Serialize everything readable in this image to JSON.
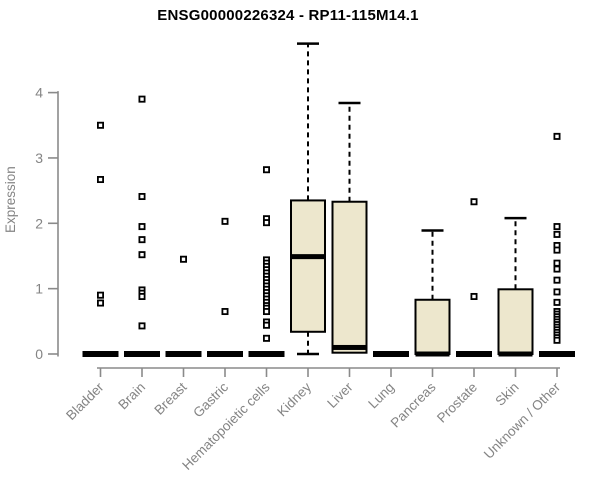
{
  "figure": {
    "title": "ENSG00000226324 - RP11-115M14.1"
  },
  "chart_data": {
    "type": "boxplot",
    "title": "ENSG00000226324 - RP11-115M14.1",
    "xlabel": "",
    "ylabel": "Expression",
    "ylim": [
      0,
      4.9
    ],
    "y_ticks": [
      0,
      1,
      2,
      3,
      4
    ],
    "grid": false,
    "legend": "none",
    "categories": [
      "Bladder",
      "Brain",
      "Breast",
      "Gastric",
      "Hematopoietic cells",
      "Kidney",
      "Liver",
      "Lung",
      "Pancreas",
      "Prostate",
      "Skin",
      "Unknown / Other"
    ],
    "boxes": [
      {
        "category": "Bladder",
        "min": 0,
        "q1": 0,
        "median": 0,
        "q3": 0,
        "max": 0,
        "outliers": [
          3.5,
          2.67,
          0.9,
          0.78
        ]
      },
      {
        "category": "Brain",
        "min": 0,
        "q1": 0,
        "median": 0,
        "q3": 0,
        "max": 0,
        "outliers": [
          3.9,
          2.41,
          1.95,
          1.75,
          1.52,
          0.98,
          0.93,
          0.88,
          0.43
        ]
      },
      {
        "category": "Breast",
        "min": 0,
        "q1": 0,
        "median": 0,
        "q3": 0,
        "max": 0,
        "outliers": [
          1.45
        ]
      },
      {
        "category": "Gastric",
        "min": 0,
        "q1": 0,
        "median": 0,
        "q3": 0,
        "max": 0,
        "outliers": [
          2.03,
          0.65
        ]
      },
      {
        "category": "Hematopoietic cells",
        "min": 0,
        "q1": 0,
        "median": 0,
        "q3": 0,
        "max": 0,
        "outliers": [
          2.82,
          2.07,
          2.01,
          1.44,
          1.39,
          1.34,
          1.29,
          1.24,
          1.19,
          1.14,
          1.09,
          1.04,
          0.99,
          0.94,
          0.89,
          0.84,
          0.79,
          0.74,
          0.7,
          0.65,
          0.49,
          0.44,
          0.24
        ]
      },
      {
        "category": "Kidney",
        "min": 0,
        "q1": 0.34,
        "median": 1.49,
        "q3": 2.35,
        "max": 4.75,
        "outliers": []
      },
      {
        "category": "Liver",
        "min": 0.02,
        "q1": 0.02,
        "median": 0.1,
        "q3": 2.33,
        "max": 3.84,
        "outliers": []
      },
      {
        "category": "Lung",
        "min": 0,
        "q1": 0,
        "median": 0,
        "q3": 0,
        "max": 0,
        "outliers": []
      },
      {
        "category": "Pancreas",
        "min": 0,
        "q1": 0,
        "median": 0,
        "q3": 0.83,
        "max": 1.89,
        "outliers": []
      },
      {
        "category": "Prostate",
        "min": 0,
        "q1": 0,
        "median": 0,
        "q3": 0,
        "max": 0,
        "outliers": [
          2.33,
          0.88
        ]
      },
      {
        "category": "Skin",
        "min": 0,
        "q1": 0,
        "median": 0,
        "q3": 0.99,
        "max": 2.08,
        "outliers": []
      },
      {
        "category": "Unknown / Other",
        "min": 0,
        "q1": 0,
        "median": 0,
        "q3": 0,
        "max": 0,
        "outliers": [
          3.33,
          1.95,
          1.83,
          1.66,
          1.59,
          1.39,
          1.3,
          1.13,
          0.95,
          0.79,
          0.65,
          0.61,
          0.57,
          0.53,
          0.49,
          0.45,
          0.41,
          0.37,
          0.33,
          0.29,
          0.25,
          0.21
        ]
      }
    ]
  },
  "colors": {
    "background": "#FFFFFF",
    "box_fill": "#EDE7CD",
    "box_stroke": "#000000",
    "median": "#000000",
    "whisker": "#000000",
    "outlier_stroke": "#000000",
    "outlier_fill": "#FFFFFF",
    "axis_line": "#8A8A8A",
    "tick_text": "#848484",
    "title_text": "#000000"
  }
}
